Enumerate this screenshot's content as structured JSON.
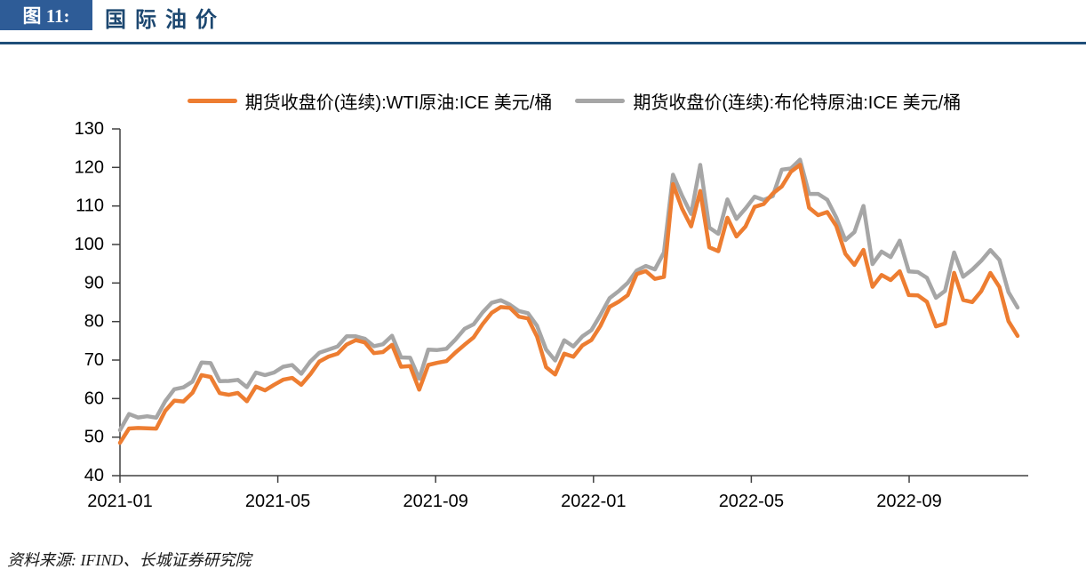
{
  "header": {
    "figure_label": "图 11:",
    "title": "国际油价"
  },
  "legend": [
    {
      "label": "期货收盘价(连续):WTI原油:ICE 美元/桶",
      "color": "#ED7D31"
    },
    {
      "label": "期货收盘价(连续):布伦特原油:ICE 美元/桶",
      "color": "#A6A6A6"
    }
  ],
  "footer": {
    "source": "资料来源: IFIND、长城证券研究院"
  },
  "chart_data": {
    "type": "line",
    "title": "国际油价",
    "unit": "美元/桶",
    "x_frequency": "weekly",
    "x_start": "2021-01-01",
    "x_end": "2022-11-25",
    "x_tick_labels": [
      "2021-01",
      "2021-05",
      "2021-09",
      "2022-01",
      "2022-05",
      "2022-09"
    ],
    "x_tick_months": [
      0,
      4,
      8,
      12,
      16,
      20
    ],
    "ylim": [
      40,
      130
    ],
    "y_ticks": [
      40,
      50,
      60,
      70,
      80,
      90,
      100,
      110,
      120,
      130
    ],
    "grid": false,
    "legend_position": "top",
    "series": [
      {
        "name": "期货收盘价(连续):WTI原油:ICE 美元/桶",
        "color": "#ED7D31",
        "values": [
          48.52,
          52.24,
          52.36,
          52.27,
          52.2,
          56.85,
          59.47,
          59.24,
          61.5,
          66.09,
          65.61,
          61.42,
          60.97,
          61.45,
          59.32,
          63.13,
          62.14,
          63.58,
          64.9,
          65.37,
          63.58,
          66.32,
          69.62,
          70.91,
          71.64,
          74.05,
          75.16,
          74.56,
          71.81,
          72.07,
          73.95,
          68.28,
          68.44,
          62.32,
          68.74,
          69.29,
          69.72,
          71.97,
          73.98,
          75.88,
          79.35,
          82.28,
          83.76,
          83.57,
          81.27,
          80.79,
          76.1,
          68.15,
          66.26,
          71.67,
          70.86,
          73.79,
          75.21,
          78.9,
          83.82,
          85.14,
          86.82,
          92.31,
          93.1,
          91.07,
          91.59,
          115.68,
          109.33,
          104.7,
          113.9,
          99.27,
          98.26,
          106.95,
          102.07,
          104.69,
          109.77,
          110.49,
          113.23,
          115.07,
          118.87,
          120.67,
          109.56,
          107.62,
          108.43,
          104.79,
          97.59,
          94.7,
          98.62,
          89.01,
          92.09,
          90.77,
          93.06,
          86.87,
          86.79,
          85.11,
          78.74,
          79.49,
          92.64,
          85.61,
          85.05,
          87.9,
          92.61,
          88.96,
          80.08,
          76.28
        ]
      },
      {
        "name": "期货收盘价(连续):布伦特原油:ICE 美元/桶",
        "color": "#A6A6A6",
        "values": [
          51.8,
          55.99,
          55.1,
          55.41,
          55.04,
          59.34,
          62.43,
          62.91,
          64.42,
          69.36,
          69.22,
          64.53,
          64.57,
          64.86,
          62.95,
          66.77,
          66.11,
          66.76,
          68.28,
          68.71,
          66.44,
          69.63,
          71.89,
          72.69,
          73.51,
          76.18,
          76.17,
          75.55,
          73.59,
          74.1,
          76.33,
          70.7,
          70.59,
          65.18,
          72.7,
          72.61,
          72.92,
          75.34,
          78.09,
          79.28,
          82.39,
          84.86,
          85.53,
          84.38,
          82.74,
          82.17,
          78.89,
          72.72,
          69.88,
          75.15,
          73.52,
          76.14,
          77.78,
          81.75,
          86.06,
          87.89,
          90.03,
          93.27,
          94.44,
          93.54,
          97.93,
          118.11,
          112.67,
          107.93,
          120.65,
          104.39,
          102.78,
          111.7,
          106.65,
          109.34,
          112.39,
          111.55,
          112.55,
          119.43,
          119.72,
          122.01,
          113.12,
          113.12,
          111.63,
          107.02,
          101.16,
          103.2,
          110.01,
          94.92,
          98.15,
          96.72,
          100.99,
          93.02,
          92.84,
          91.35,
          86.15,
          87.96,
          97.92,
          91.63,
          93.5,
          95.77,
          98.57,
          95.99,
          87.62,
          83.63
        ]
      }
    ]
  }
}
